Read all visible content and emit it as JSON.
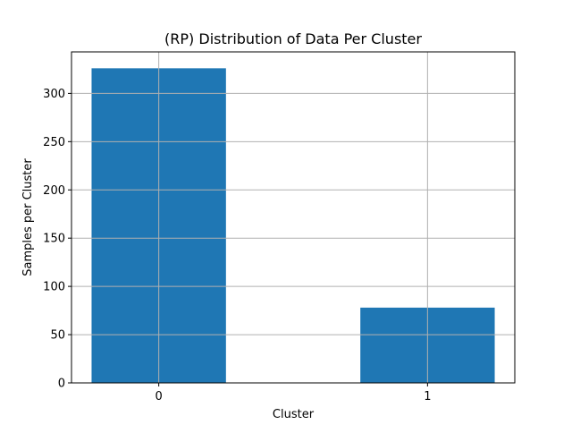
{
  "chart_data": {
    "type": "bar",
    "title": "(RP) Distribution of Data Per Cluster",
    "xlabel": "Cluster",
    "ylabel": "Samples per Cluster",
    "categories": [
      "0",
      "1"
    ],
    "values": [
      326,
      78
    ],
    "ylim": [
      0,
      343
    ],
    "yticks": [
      0,
      50,
      100,
      150,
      200,
      250,
      300
    ],
    "grid": true,
    "bar_color": "#1f77b4",
    "grid_color": "#b0b0b0"
  }
}
